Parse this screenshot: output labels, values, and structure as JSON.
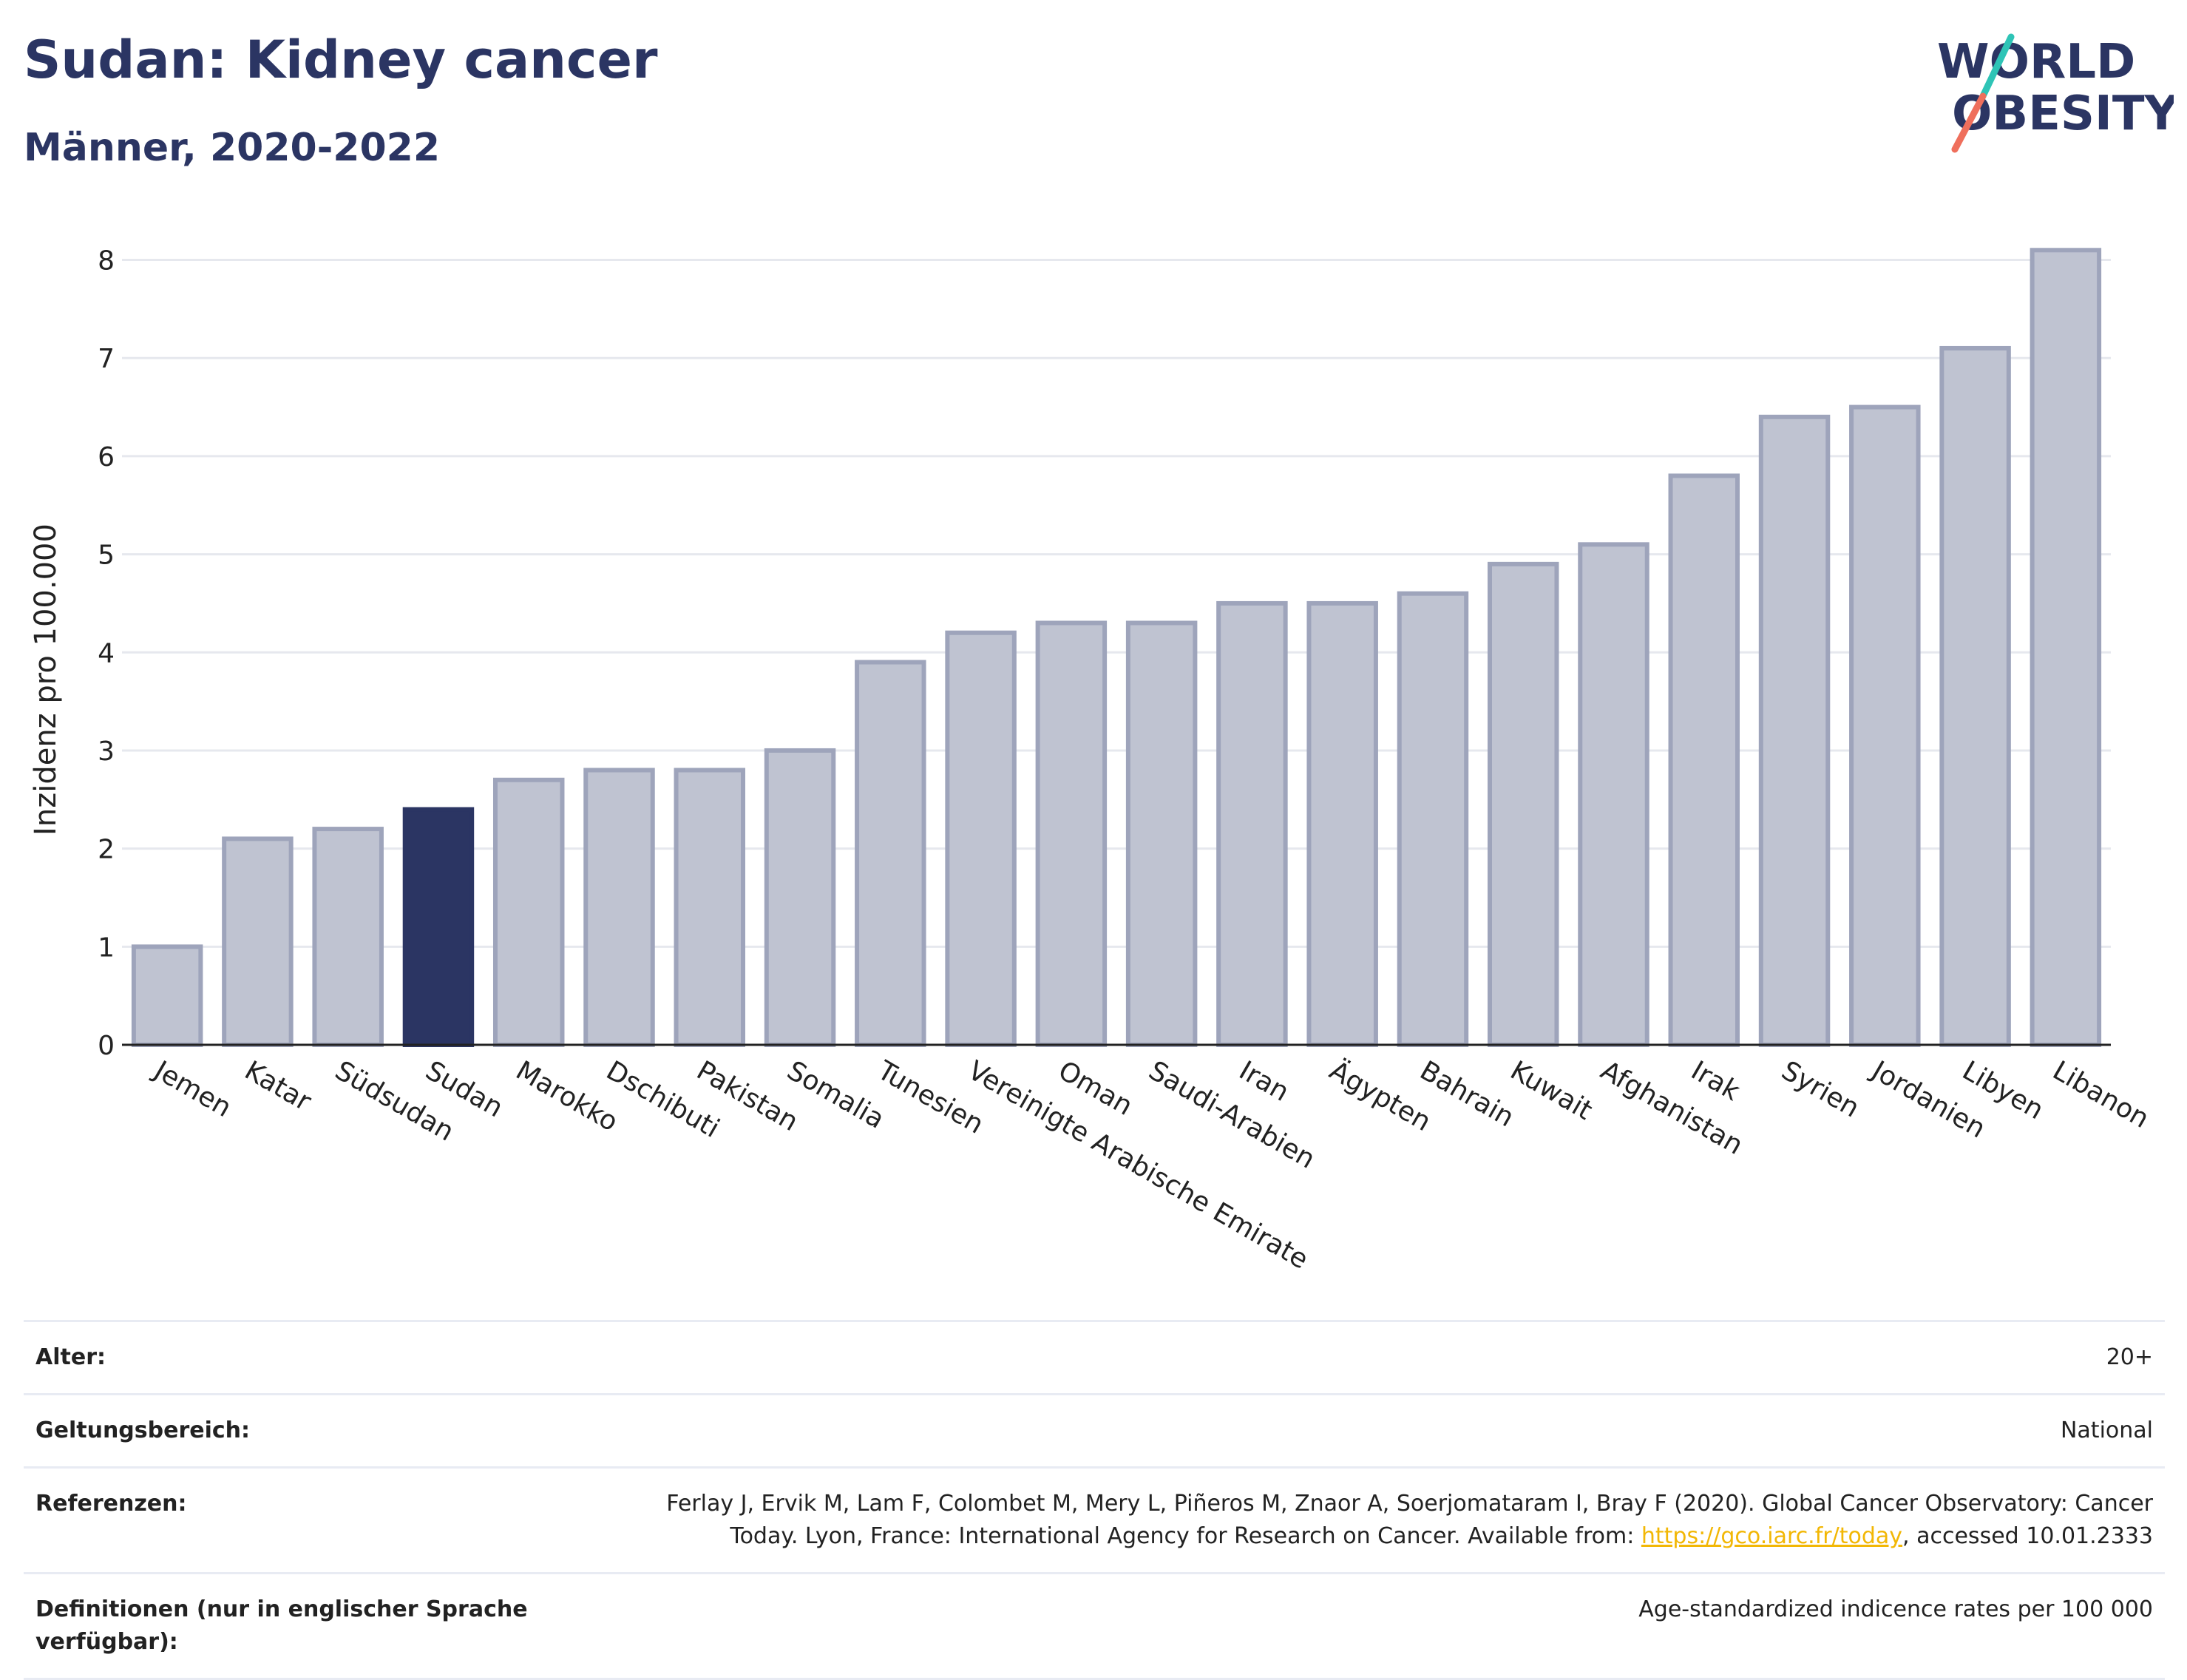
{
  "header": {
    "title": "Sudan: Kidney cancer",
    "subtitle": "Männer, 2020-2022",
    "logo_line1": "WORLD",
    "logo_line2": "OBESITY"
  },
  "colors": {
    "title": "#2b3563",
    "bar_default": "#bfc3d1",
    "bar_default_border": "#9ea4bb",
    "bar_highlight": "#2b3563",
    "grid": "#e6e8ee",
    "link": "#f2b705",
    "logo_teal": "#2ec4b6",
    "logo_coral": "#ef6f5c"
  },
  "chart_data": {
    "type": "bar",
    "title": "Sudan: Kidney cancer",
    "subtitle": "Männer, 2020-2022",
    "xlabel": "",
    "ylabel": "Inzidenz pro 100.000",
    "ylim": [
      0,
      8.2
    ],
    "yticks": [
      0,
      1,
      2,
      3,
      4,
      5,
      6,
      7,
      8
    ],
    "grid": true,
    "highlight": "Sudan",
    "categories": [
      "Jemen",
      "Katar",
      "Südsudan",
      "Sudan",
      "Marokko",
      "Dschibuti",
      "Pakistan",
      "Somalia",
      "Tunesien",
      "Vereinigte Arabische Emirate",
      "Oman",
      "Saudi-Arabien",
      "Iran",
      "Ägypten",
      "Bahrain",
      "Kuwait",
      "Afghanistan",
      "Irak",
      "Syrien",
      "Jordanien",
      "Libyen",
      "Libanon"
    ],
    "values": [
      1.0,
      2.1,
      2.2,
      2.4,
      2.7,
      2.8,
      2.8,
      3.0,
      3.9,
      4.2,
      4.3,
      4.3,
      4.5,
      4.5,
      4.6,
      4.9,
      5.1,
      5.8,
      6.4,
      6.5,
      7.1,
      8.1
    ]
  },
  "info": {
    "age_label": "Alter:",
    "age_value": "20+",
    "scope_label": "Geltungsbereich:",
    "scope_value": "National",
    "references_label": "Referenzen:",
    "references_line1": "Ferlay J, Ervik M, Lam F, Colombet M, Mery L, Piñeros M, Znaor A, Soerjomataram I, Bray F (2020). Global Cancer Observatory: Cancer",
    "references_line2_pre": "Today. Lyon, France: International Agency for Research on Cancer. Available from: ",
    "references_link": "https://gco.iarc.fr/today",
    "references_line2_post": ", accessed 10.01.2333",
    "definitions_label": "Definitionen (nur in englischer Sprache verfügbar):",
    "definitions_value": "Age-standardized indicence rates per 100 000"
  }
}
